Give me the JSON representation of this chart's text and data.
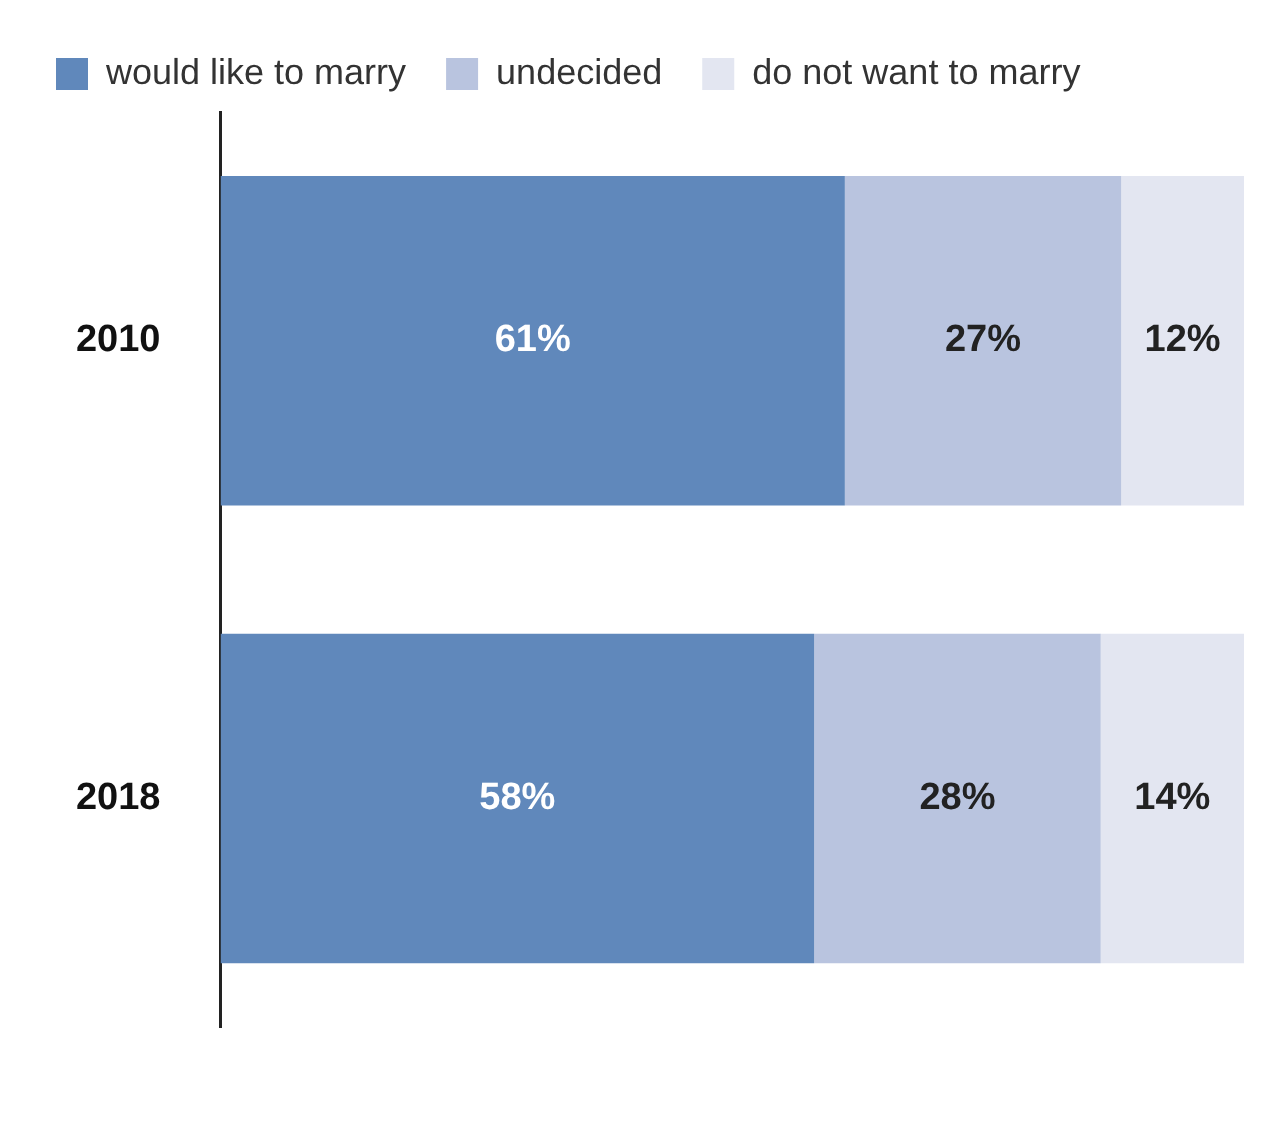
{
  "chart_data": {
    "type": "bar",
    "orientation": "horizontal",
    "stacked": true,
    "categories": [
      "2010",
      "2018"
    ],
    "xlim": [
      0,
      100
    ],
    "tick_labels": "y",
    "grid": false,
    "legend": "top left",
    "series": [
      {
        "name": "would like to marry",
        "color": "#6088bb",
        "values": [
          61,
          58
        ],
        "value_labels": [
          "61%",
          "58%"
        ]
      },
      {
        "name": "undecided",
        "color": "#b9c4df",
        "values": [
          27,
          28
        ],
        "value_labels": [
          "27%",
          "28%"
        ]
      },
      {
        "name": "do not want to marry",
        "color": "#e3e6f1",
        "values": [
          12,
          14
        ],
        "value_labels": [
          "12%",
          "14%"
        ]
      }
    ]
  }
}
